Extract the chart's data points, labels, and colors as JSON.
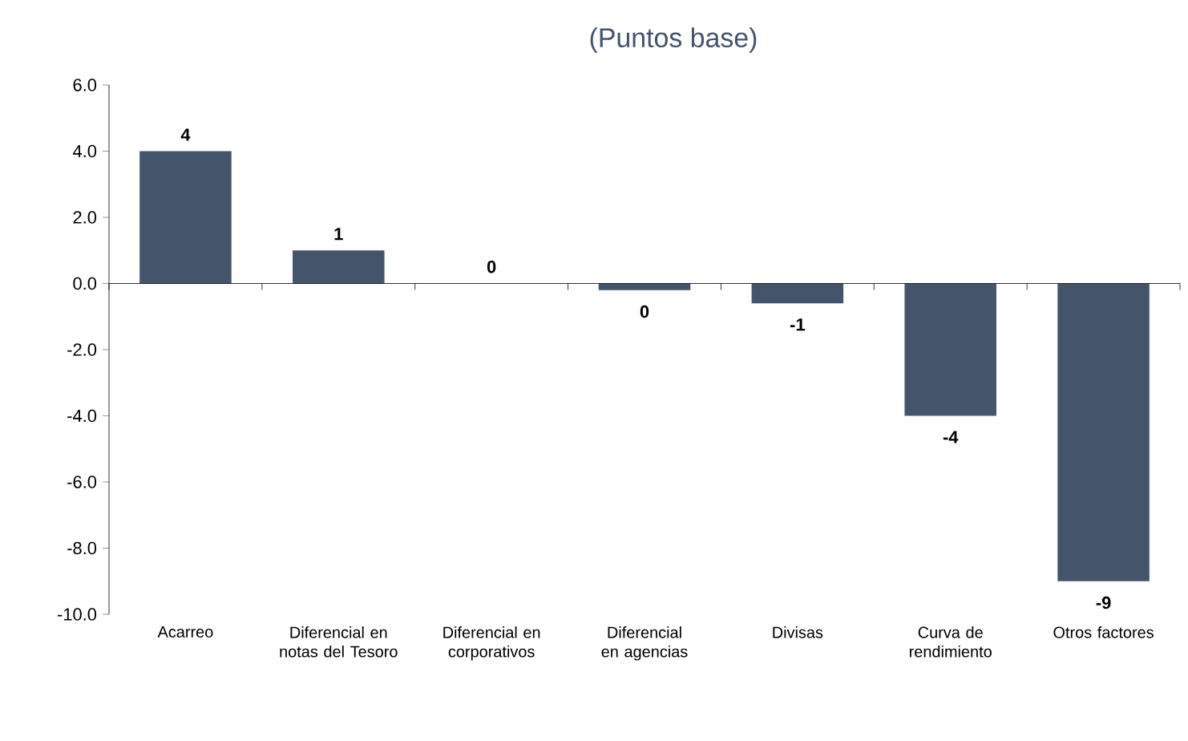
{
  "chart_data": {
    "type": "bar",
    "subtitle": "(Puntos base)",
    "categories": [
      "Acarreo",
      "Diferencial en notas del Tesoro",
      "Diferencial en corporativos",
      "Diferencial en agencias",
      "Divisas",
      "Curva de rendimiento",
      "Otros factores"
    ],
    "values": [
      4.0,
      1.0,
      0.0,
      -0.2,
      -0.6,
      -4.0,
      -9.0
    ],
    "value_labels": [
      "4",
      "1",
      "0",
      "0",
      "-1",
      "-4",
      "-9"
    ],
    "color": "#44546a",
    "ylim": [
      -10,
      6
    ],
    "yticks": [
      {
        "value": -10,
        "label": "-10.0"
      },
      {
        "value": -8,
        "label": "-8.0"
      },
      {
        "value": -6,
        "label": "-6.0"
      },
      {
        "value": -4,
        "label": "-4.0"
      },
      {
        "value": -2,
        "label": "-2.0"
      },
      {
        "value": 0,
        "label": "0.0"
      },
      {
        "value": 2,
        "label": "2.0"
      },
      {
        "value": 4,
        "label": "4.0"
      },
      {
        "value": 6,
        "label": "6.0"
      }
    ]
  }
}
